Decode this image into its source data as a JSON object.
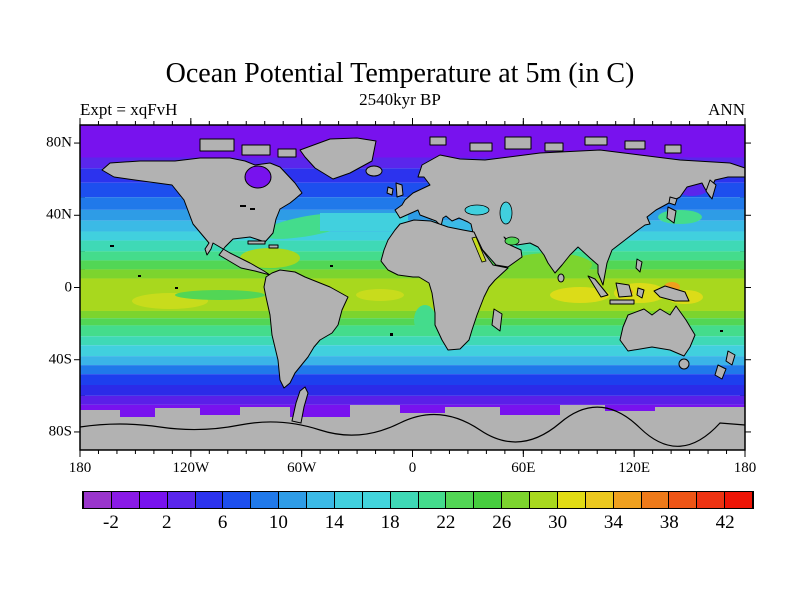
{
  "header": {
    "title": "Ocean Potential Temperature at 5m (in C)",
    "subtitle": "2540kyr BP",
    "experiment": "Expt = xqFvH",
    "season": "ANN"
  },
  "axes": {
    "lat_ticks": [
      {
        "label": "80N",
        "deg": 80
      },
      {
        "label": "40N",
        "deg": 40
      },
      {
        "label": "0",
        "deg": 0
      },
      {
        "label": "40S",
        "deg": -40
      },
      {
        "label": "80S",
        "deg": -80
      }
    ],
    "lon_ticks": [
      {
        "label": "180",
        "deg": -180
      },
      {
        "label": "120W",
        "deg": -120
      },
      {
        "label": "60W",
        "deg": -60
      },
      {
        "label": "0",
        "deg": 0
      },
      {
        "label": "60E",
        "deg": 60
      },
      {
        "label": "120E",
        "deg": 120
      },
      {
        "label": "180",
        "deg": 180
      }
    ],
    "minor_tick_interval_deg": 10
  },
  "colorbar": {
    "tick_labels": [
      "-2",
      "2",
      "6",
      "10",
      "14",
      "18",
      "22",
      "26",
      "30",
      "34",
      "38",
      "42"
    ],
    "value_min": -4,
    "value_max": 44,
    "step": 2,
    "cell_colors": [
      "#9A35CC",
      "#8A1AE6",
      "#7812EE",
      "#5A26EC",
      "#2C33EE",
      "#1D4FEE",
      "#2079EA",
      "#2E9CE6",
      "#3BBAE6",
      "#41D0DE",
      "#42D4DC",
      "#3FD9B6",
      "#44DC8C",
      "#52D655",
      "#46CE3E",
      "#7CD42E",
      "#A8D81E",
      "#E2DC14",
      "#ECC81E",
      "#F0A01E",
      "#EE7A1A",
      "#EE5516",
      "#EE3312",
      "#EE1506"
    ]
  },
  "map": {
    "land_color": "#B2B2B2",
    "coast_color": "#000000",
    "frame_color": "#000000"
  },
  "chart_data": {
    "type": "heatmap",
    "title": "Ocean Potential Temperature at 5m (in C)",
    "subtitle": "2540kyr BP",
    "experiment": "Expt = xqFvH",
    "season": "ANN",
    "units": "C",
    "depth": "5m",
    "lon_range": [
      -180,
      180
    ],
    "lat_range": [
      -90,
      90
    ],
    "colorbar_levels": [
      -2,
      2,
      6,
      10,
      14,
      18,
      22,
      26,
      30,
      34,
      38,
      42
    ],
    "colorbar_colors": [
      "#9A35CC",
      "#8A1AE6",
      "#7812EE",
      "#5A26EC",
      "#2C33EE",
      "#1D4FEE",
      "#2079EA",
      "#2E9CE6",
      "#3BBAE6",
      "#41D0DE",
      "#42D4DC",
      "#3FD9B6",
      "#44DC8C",
      "#52D655",
      "#46CE3E",
      "#7CD42E",
      "#A8D81E",
      "#E2DC14",
      "#ECC81E",
      "#F0A01E",
      "#EE7A1A",
      "#EE5516",
      "#EE3312",
      "#EE1506"
    ],
    "zonal_bands": [
      {
        "lat_from": 90,
        "lat_to": 72,
        "temp_c": -2,
        "color": "#7812EE"
      },
      {
        "lat_from": 72,
        "lat_to": 66,
        "temp_c": 1,
        "color": "#5A26EC"
      },
      {
        "lat_from": 66,
        "lat_to": 58,
        "temp_c": 4,
        "color": "#2C33EE"
      },
      {
        "lat_from": 58,
        "lat_to": 50,
        "temp_c": 7,
        "color": "#1D4FEE"
      },
      {
        "lat_from": 50,
        "lat_to": 43,
        "temp_c": 10,
        "color": "#2079EA"
      },
      {
        "lat_from": 43,
        "lat_to": 37,
        "temp_c": 13,
        "color": "#2E9CE6"
      },
      {
        "lat_from": 37,
        "lat_to": 31,
        "temp_c": 16,
        "color": "#3BBAE6"
      },
      {
        "lat_from": 31,
        "lat_to": 26,
        "temp_c": 18,
        "color": "#41D0DE"
      },
      {
        "lat_from": 26,
        "lat_to": 20,
        "temp_c": 21,
        "color": "#3FD9B6"
      },
      {
        "lat_from": 20,
        "lat_to": 15,
        "temp_c": 23,
        "color": "#44DC8C"
      },
      {
        "lat_from": 15,
        "lat_to": 10,
        "temp_c": 25,
        "color": "#52D655"
      },
      {
        "lat_from": 10,
        "lat_to": 5,
        "temp_c": 27,
        "color": "#7CD42E"
      },
      {
        "lat_from": 5,
        "lat_to": -13,
        "temp_c": 28,
        "color": "#A8D81E"
      },
      {
        "lat_from": -13,
        "lat_to": -17,
        "temp_c": 27,
        "color": "#7CD42E"
      },
      {
        "lat_from": -17,
        "lat_to": -21,
        "temp_c": 25,
        "color": "#52D655"
      },
      {
        "lat_from": -21,
        "lat_to": -27,
        "temp_c": 23,
        "color": "#44DC8C"
      },
      {
        "lat_from": -27,
        "lat_to": -32,
        "temp_c": 21,
        "color": "#3FD9B6"
      },
      {
        "lat_from": -32,
        "lat_to": -38,
        "temp_c": 18,
        "color": "#41D0DE"
      },
      {
        "lat_from": -38,
        "lat_to": -43,
        "temp_c": 15,
        "color": "#3BB4E8"
      },
      {
        "lat_from": -43,
        "lat_to": -48,
        "temp_c": 11,
        "color": "#2079EA"
      },
      {
        "lat_from": -48,
        "lat_to": -54,
        "temp_c": 7,
        "color": "#1D3FEE"
      },
      {
        "lat_from": -54,
        "lat_to": -60,
        "temp_c": 4,
        "color": "#2B2BE8"
      },
      {
        "lat_from": -60,
        "lat_to": -65,
        "temp_c": 1,
        "color": "#5A1FE8"
      },
      {
        "lat_from": -65,
        "lat_to": -74,
        "temp_c": -1,
        "color": "#7812EE"
      }
    ],
    "features": [
      {
        "name": "hudson-bay-cold",
        "temp_c": -2
      },
      {
        "name": "sea-of-okhotsk-cold",
        "temp_c": 0
      },
      {
        "name": "gulf-stream-warm-tongue",
        "temp_c": 24
      },
      {
        "name": "mediterranean",
        "temp_c": 18
      },
      {
        "name": "warm-pool-indonesia",
        "temp_c": 30
      },
      {
        "name": "antarctica-ice-land",
        "temp_c": null
      }
    ]
  }
}
